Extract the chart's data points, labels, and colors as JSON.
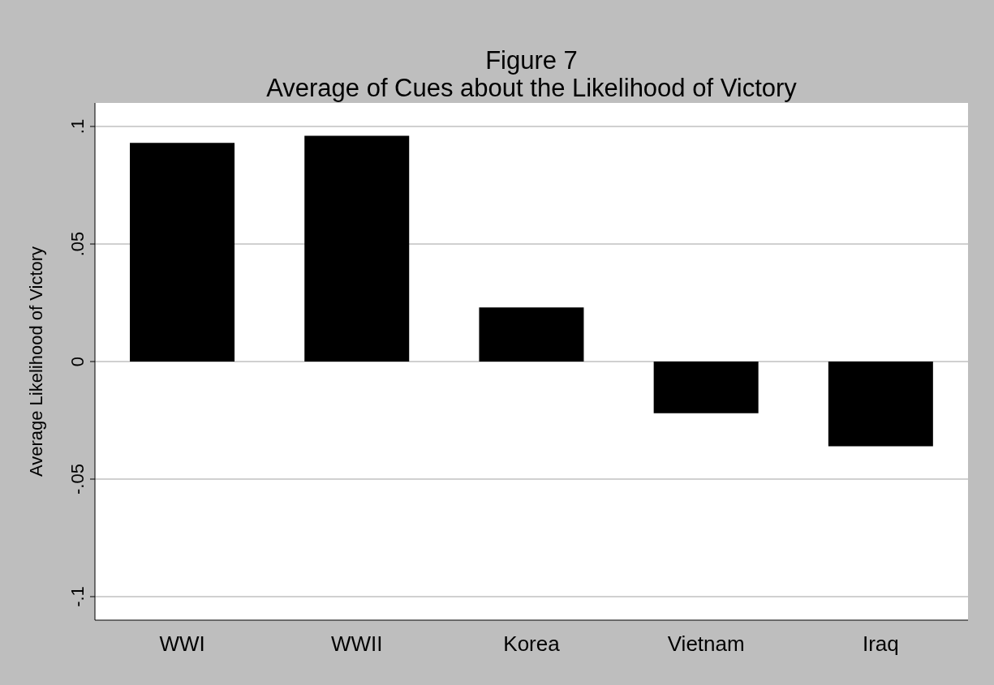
{
  "chart_data": {
    "type": "bar",
    "title": "Figure 7",
    "subtitle": "Average of Cues about the Likelihood of Victory",
    "ylabel": "Average Likelihood of Victory",
    "categories": [
      "WWI",
      "WWII",
      "Korea",
      "Vietnam",
      "Iraq"
    ],
    "values": [
      0.093,
      0.096,
      0.023,
      -0.022,
      -0.036
    ],
    "color": "#000000",
    "ylim": [
      -0.11,
      0.11
    ],
    "yticks": [
      {
        "value": -0.1,
        "label": "-.1"
      },
      {
        "value": -0.05,
        "label": "-.05"
      },
      0,
      {
        "value": 0.05,
        "label": ".05"
      },
      {
        "value": 0.1,
        "label": ".1"
      }
    ],
    "grid": "y"
  }
}
